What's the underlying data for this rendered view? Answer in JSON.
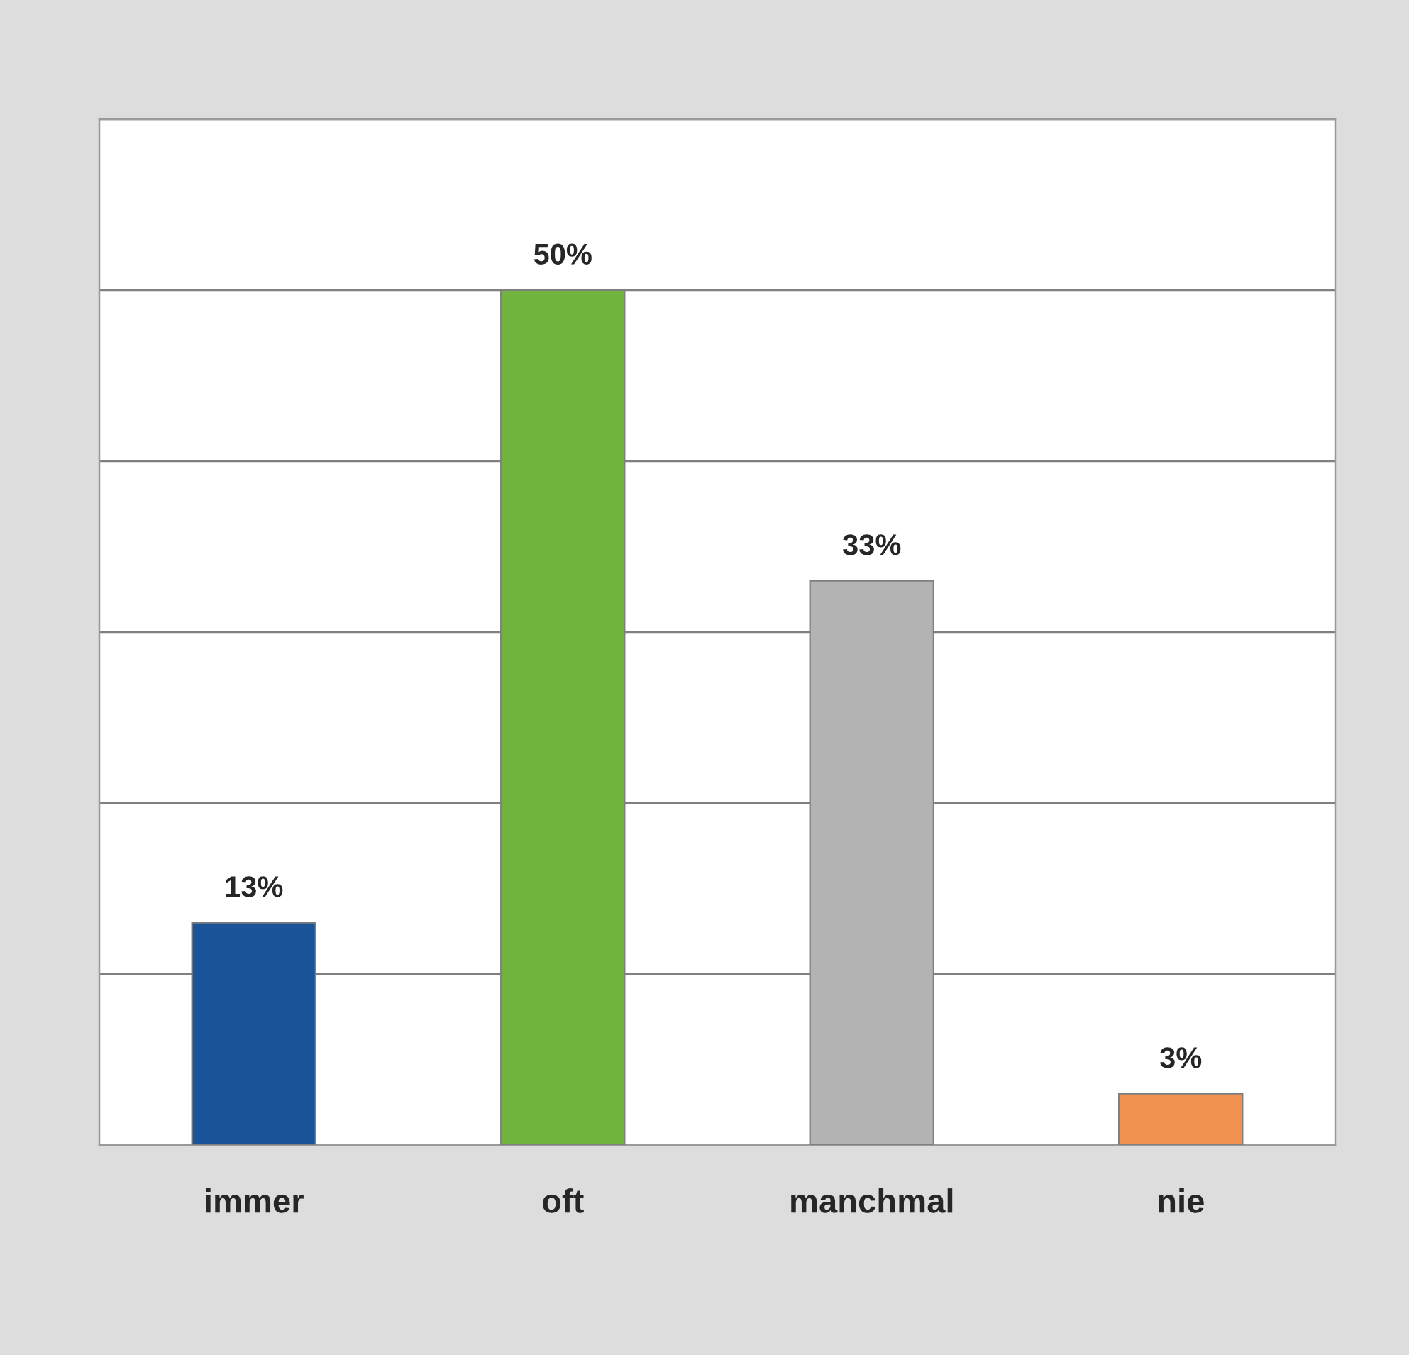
{
  "chart_data": {
    "type": "bar",
    "categories": [
      "immer",
      "oft",
      "manchmal",
      "nie"
    ],
    "values": [
      13,
      50,
      33,
      3
    ],
    "colors": [
      "#1a5599",
      "#70b33d",
      "#b3b3b3",
      "#f0924f"
    ],
    "value_labels": [
      "13%",
      "50%",
      "33%",
      "3%"
    ],
    "ylim": [
      0,
      60
    ],
    "yticks": [
      {
        "value": 0,
        "label": null
      },
      {
        "value": 10,
        "label": null
      },
      {
        "value": 20,
        "label": null
      },
      {
        "value": 30,
        "label": null
      },
      {
        "value": 40,
        "label": null
      },
      {
        "value": 50,
        "label": null
      },
      {
        "value": 60,
        "label": null
      }
    ],
    "grid": "y",
    "legend": false
  }
}
